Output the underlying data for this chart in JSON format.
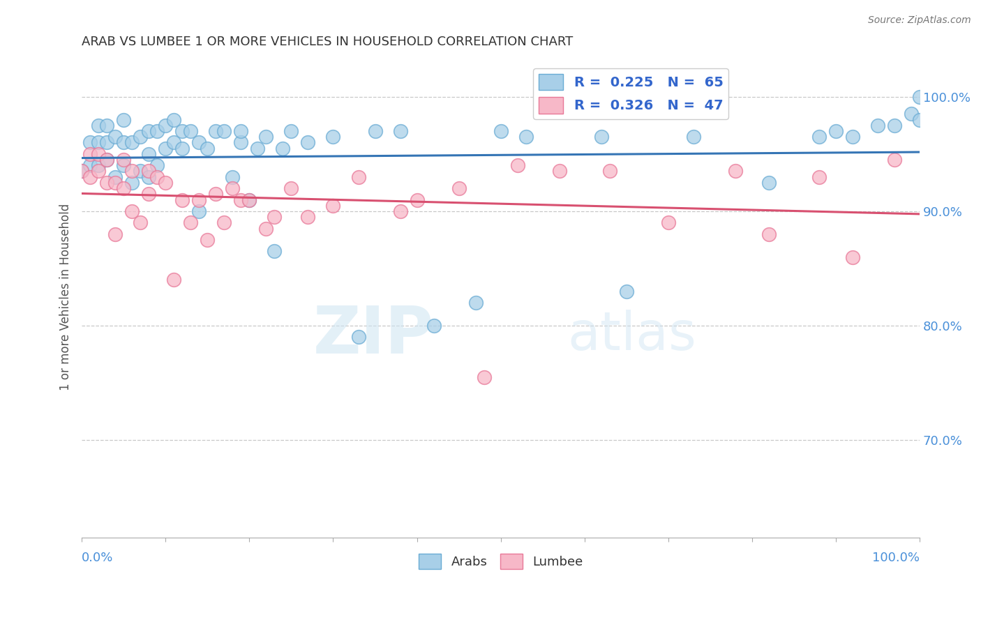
{
  "title": "ARAB VS LUMBEE 1 OR MORE VEHICLES IN HOUSEHOLD CORRELATION CHART",
  "source": "Source: ZipAtlas.com",
  "ylabel": "1 or more Vehicles in Household",
  "xlim": [
    0.0,
    1.0
  ],
  "ylim": [
    0.615,
    1.035
  ],
  "yticks": [
    0.7,
    0.8,
    0.9,
    1.0
  ],
  "ytick_labels": [
    "70.0%",
    "80.0%",
    "90.0%",
    "100.0%"
  ],
  "arab_color": "#a8cfe8",
  "arab_edge": "#6aacd4",
  "lumbee_color": "#f7b8c8",
  "lumbee_edge": "#e87898",
  "arab_line_color": "#3575b5",
  "lumbee_line_color": "#d85070",
  "watermark_zip": "ZIP",
  "watermark_atlas": "atlas",
  "background_color": "#ffffff",
  "grid_color": "#c8c8c8",
  "title_color": "#333333",
  "tick_color": "#4a90d9",
  "legend_label_color": "#3366cc",
  "bottom_legend_color": "#333333",
  "arab_R": 0.225,
  "arab_N": 65,
  "lumbee_R": 0.326,
  "lumbee_N": 47,
  "arab_points_x": [
    0.0,
    0.01,
    0.01,
    0.02,
    0.02,
    0.02,
    0.03,
    0.03,
    0.03,
    0.04,
    0.04,
    0.05,
    0.05,
    0.05,
    0.06,
    0.06,
    0.07,
    0.07,
    0.08,
    0.08,
    0.08,
    0.09,
    0.09,
    0.1,
    0.1,
    0.11,
    0.11,
    0.12,
    0.12,
    0.13,
    0.14,
    0.14,
    0.15,
    0.16,
    0.17,
    0.18,
    0.19,
    0.19,
    0.2,
    0.21,
    0.22,
    0.23,
    0.24,
    0.25,
    0.27,
    0.3,
    0.33,
    0.35,
    0.38,
    0.42,
    0.47,
    0.5,
    0.53,
    0.62,
    0.65,
    0.73,
    0.82,
    0.88,
    0.9,
    0.92,
    0.95,
    0.97,
    0.99,
    1.0,
    1.0
  ],
  "arab_points_y": [
    0.935,
    0.94,
    0.96,
    0.94,
    0.96,
    0.975,
    0.945,
    0.96,
    0.975,
    0.93,
    0.965,
    0.94,
    0.96,
    0.98,
    0.925,
    0.96,
    0.935,
    0.965,
    0.93,
    0.95,
    0.97,
    0.94,
    0.97,
    0.955,
    0.975,
    0.96,
    0.98,
    0.955,
    0.97,
    0.97,
    0.9,
    0.96,
    0.955,
    0.97,
    0.97,
    0.93,
    0.96,
    0.97,
    0.91,
    0.955,
    0.965,
    0.865,
    0.955,
    0.97,
    0.96,
    0.965,
    0.79,
    0.97,
    0.97,
    0.8,
    0.82,
    0.97,
    0.965,
    0.965,
    0.83,
    0.965,
    0.925,
    0.965,
    0.97,
    0.965,
    0.975,
    0.975,
    0.985,
    0.98,
    1.0
  ],
  "lumbee_points_x": [
    0.0,
    0.01,
    0.01,
    0.02,
    0.02,
    0.03,
    0.03,
    0.04,
    0.04,
    0.05,
    0.05,
    0.06,
    0.06,
    0.07,
    0.08,
    0.08,
    0.09,
    0.1,
    0.11,
    0.12,
    0.13,
    0.14,
    0.15,
    0.16,
    0.17,
    0.18,
    0.19,
    0.2,
    0.22,
    0.23,
    0.25,
    0.27,
    0.3,
    0.33,
    0.38,
    0.4,
    0.45,
    0.48,
    0.52,
    0.57,
    0.63,
    0.7,
    0.78,
    0.82,
    0.88,
    0.92,
    0.97
  ],
  "lumbee_points_y": [
    0.935,
    0.93,
    0.95,
    0.935,
    0.95,
    0.925,
    0.945,
    0.88,
    0.925,
    0.92,
    0.945,
    0.9,
    0.935,
    0.89,
    0.915,
    0.935,
    0.93,
    0.925,
    0.84,
    0.91,
    0.89,
    0.91,
    0.875,
    0.915,
    0.89,
    0.92,
    0.91,
    0.91,
    0.885,
    0.895,
    0.92,
    0.895,
    0.905,
    0.93,
    0.9,
    0.91,
    0.92,
    0.755,
    0.94,
    0.935,
    0.935,
    0.89,
    0.935,
    0.88,
    0.93,
    0.86,
    0.945
  ]
}
